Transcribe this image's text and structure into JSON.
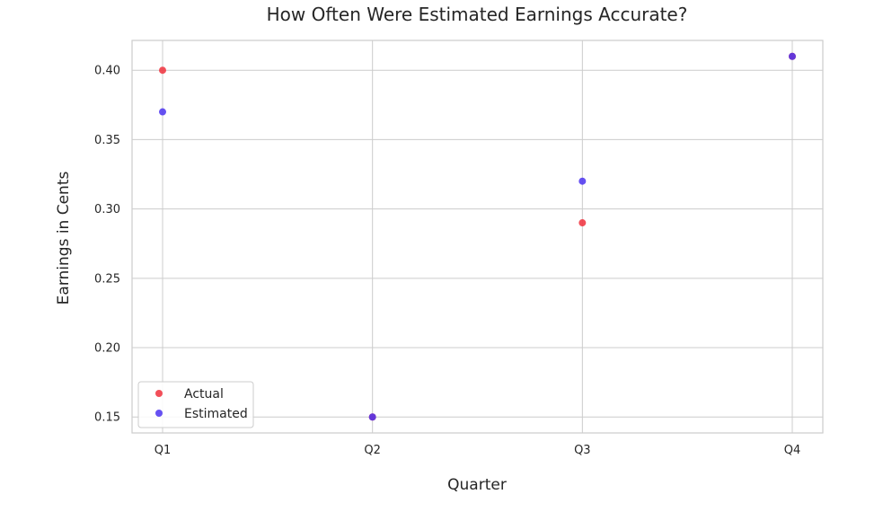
{
  "chart_data": {
    "type": "scatter",
    "title": "How Often Were Estimated Earnings Accurate?",
    "xlabel": "Quarter",
    "ylabel": "Earnings in Cents",
    "categories": [
      "Q1",
      "Q2",
      "Q3",
      "Q4"
    ],
    "yticks": [
      "0.15",
      "0.20",
      "0.25",
      "0.30",
      "0.35",
      "0.40"
    ],
    "ytick_values": [
      0.15,
      0.2,
      0.25,
      0.3,
      0.35,
      0.4
    ],
    "ylim": [
      0.1385,
      0.4215
    ],
    "grid": true,
    "legend_position": "lower-left",
    "series": [
      {
        "name": "Actual",
        "color": "#f0303c",
        "values": [
          0.4,
          0.15,
          0.29,
          0.41
        ]
      },
      {
        "name": "Estimated",
        "color": "#4b32f0",
        "values": [
          0.37,
          0.15,
          0.32,
          0.41
        ]
      }
    ]
  }
}
